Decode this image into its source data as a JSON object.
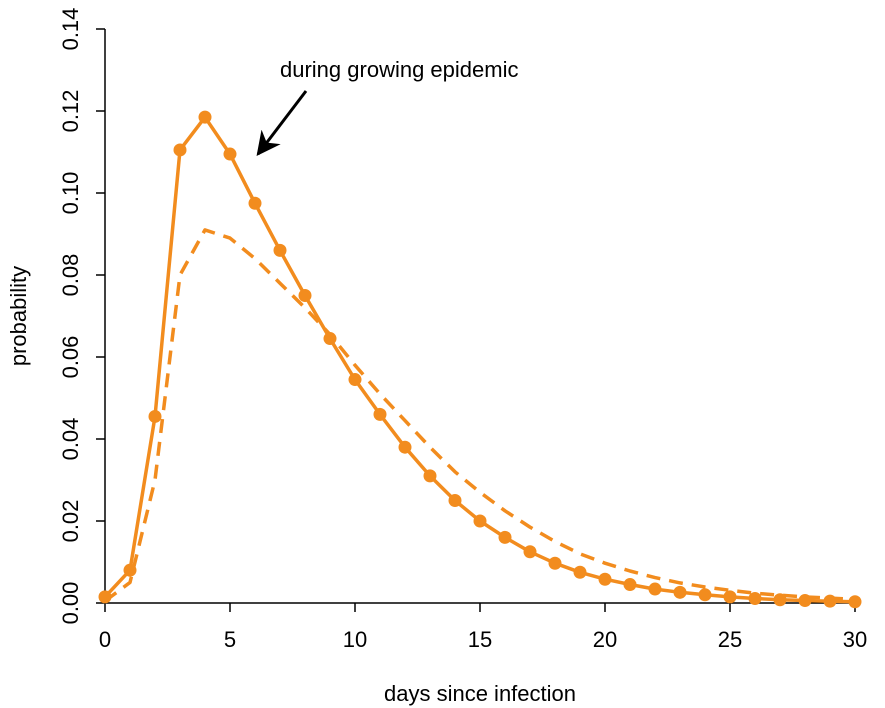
{
  "chart_data": {
    "type": "line",
    "title": "",
    "xlabel": "days since infection",
    "ylabel": "probability",
    "xlim": [
      0,
      30
    ],
    "ylim": [
      0,
      0.14
    ],
    "x_ticks": [
      0,
      5,
      10,
      15,
      20,
      25,
      30
    ],
    "x_tick_labels": [
      "0",
      "5",
      "10",
      "15",
      "20",
      "25",
      "30"
    ],
    "y_ticks": [
      0,
      0.02,
      0.04,
      0.06,
      0.08,
      0.1,
      0.12,
      0.14
    ],
    "y_tick_labels": [
      "0.00",
      "0.02",
      "0.04",
      "0.06",
      "0.08",
      "0.10",
      "0.12",
      "0.14"
    ],
    "grid": false,
    "legend": "none",
    "color": "#F28C1E",
    "series": [
      {
        "style": "solid-with-points",
        "x": [
          0,
          1,
          2,
          3,
          4,
          5,
          6,
          7,
          8,
          9,
          10,
          11,
          12,
          13,
          14,
          15,
          16,
          17,
          18,
          19,
          20,
          21,
          22,
          23,
          24,
          25,
          26,
          27,
          28,
          29,
          30
        ],
        "values": [
          0.0015,
          0.008,
          0.0455,
          0.1105,
          0.1185,
          0.1095,
          0.0975,
          0.086,
          0.075,
          0.0645,
          0.0545,
          0.046,
          0.038,
          0.031,
          0.025,
          0.02,
          0.016,
          0.0125,
          0.0097,
          0.0075,
          0.0058,
          0.0045,
          0.0034,
          0.0026,
          0.002,
          0.0015,
          0.0011,
          0.0008,
          0.0006,
          0.00045,
          0.0003
        ]
      },
      {
        "style": "dashed",
        "x": [
          0,
          1,
          2,
          3,
          4,
          5,
          6,
          7,
          8,
          9,
          10,
          11,
          12,
          13,
          14,
          15,
          16,
          17,
          18,
          19,
          20,
          21,
          22,
          23,
          24,
          25,
          26,
          27,
          28,
          29,
          30
        ],
        "values": [
          0.0005,
          0.005,
          0.03,
          0.08,
          0.091,
          0.089,
          0.084,
          0.078,
          0.072,
          0.0655,
          0.058,
          0.051,
          0.0445,
          0.038,
          0.032,
          0.027,
          0.0225,
          0.0185,
          0.015,
          0.012,
          0.0097,
          0.0078,
          0.0062,
          0.0049,
          0.0039,
          0.0031,
          0.0024,
          0.0019,
          0.0015,
          0.0012,
          0.0009
        ]
      }
    ],
    "annotations": [
      {
        "text": "during growing epidemic",
        "arrow_to": {
          "x": 6,
          "y": 0.109
        }
      }
    ]
  }
}
